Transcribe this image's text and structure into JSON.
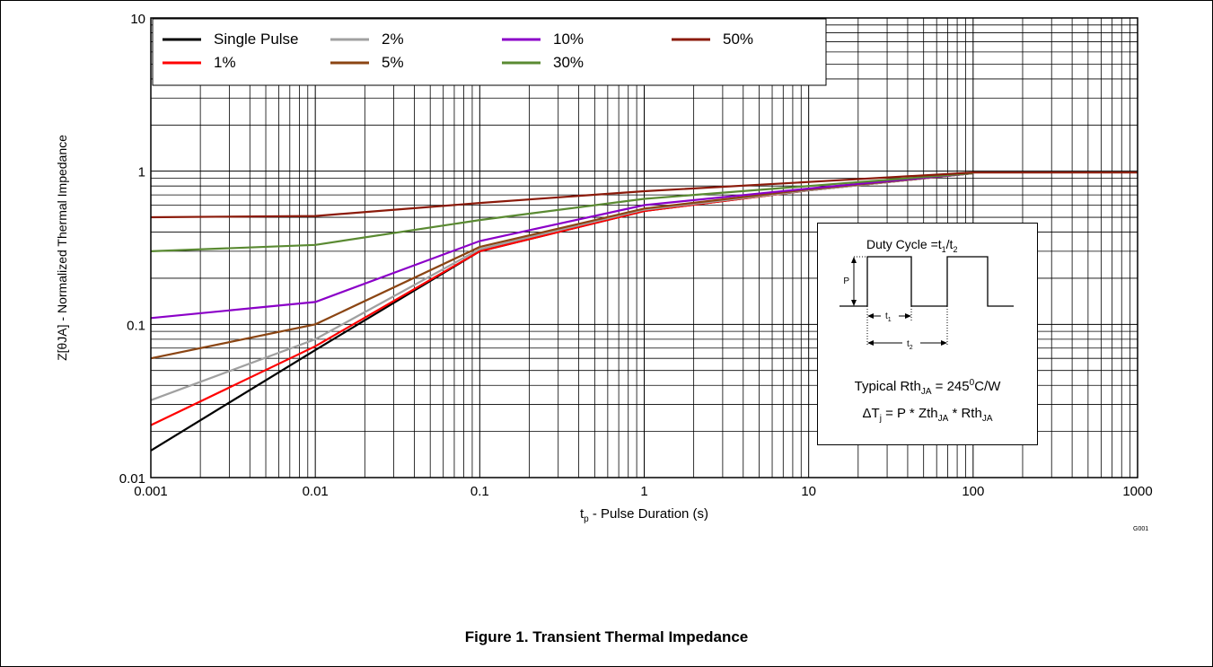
{
  "caption": "Figure 1.  Transient Thermal Impedance",
  "figure_code": "G001",
  "inset": {
    "duty_cycle_prefix": "Duty Cycle =t",
    "duty_cycle_sub1": "1",
    "duty_cycle_slash": "/t",
    "duty_cycle_sub2": "2",
    "p_label": "P",
    "t1_label": "t",
    "t1_sub": "1",
    "t2_label": "t",
    "t2_sub": "2",
    "rth_prefix": "Typical Rth",
    "rth_sub": "JA",
    "rth_value": " = 245",
    "rth_sup": "0",
    "rth_unit": "C/W",
    "dt_prefix": "ΔT",
    "dt_sub": "j",
    "dt_mid1": " = P * Zth",
    "dt_sub2": "JA",
    "dt_mid2": " * Rth",
    "dt_sub3": "JA"
  },
  "chart_data": {
    "type": "line",
    "title": "",
    "xlabel_main": "t",
    "xlabel_sub": "p",
    "xlabel_rest": " - Pulse Duration (s)",
    "ylabel": "Z[θJA] - Normalized Thermal Impedance",
    "x_scale": "log",
    "y_scale": "log",
    "xlim": [
      0.001,
      1000
    ],
    "ylim": [
      0.01,
      10
    ],
    "x_ticks": [
      "0.001",
      "0.01",
      "0.1",
      "1",
      "10",
      "100",
      "1000"
    ],
    "y_ticks": [
      "0.01",
      "0.1",
      "1",
      "10"
    ],
    "grid": true,
    "legend_position": "top-left",
    "series": [
      {
        "name": "Single Pulse",
        "color": "#000000",
        "x": [
          0.001,
          0.01,
          0.1,
          1,
          10,
          100
        ],
        "y": [
          0.015,
          0.068,
          0.3,
          0.55,
          0.75,
          0.97
        ]
      },
      {
        "name": "1%",
        "color": "#ff0000",
        "x": [
          0.001,
          0.01,
          0.1,
          1,
          10,
          100
        ],
        "y": [
          0.022,
          0.072,
          0.3,
          0.55,
          0.75,
          0.97
        ]
      },
      {
        "name": "2%",
        "color": "#a0a0a0",
        "x": [
          0.001,
          0.01,
          0.1,
          1,
          10,
          100
        ],
        "y": [
          0.032,
          0.08,
          0.31,
          0.56,
          0.75,
          0.97
        ]
      },
      {
        "name": "5%",
        "color": "#8b4513",
        "x": [
          0.001,
          0.01,
          0.1,
          1,
          10,
          100
        ],
        "y": [
          0.06,
          0.1,
          0.32,
          0.57,
          0.76,
          0.97
        ]
      },
      {
        "name": "10%",
        "color": "#8b00c8",
        "x": [
          0.001,
          0.01,
          0.1,
          1,
          10,
          100
        ],
        "y": [
          0.11,
          0.14,
          0.35,
          0.6,
          0.77,
          0.97
        ]
      },
      {
        "name": "30%",
        "color": "#5a8a32",
        "x": [
          0.001,
          0.01,
          0.1,
          1,
          10,
          100
        ],
        "y": [
          0.3,
          0.33,
          0.48,
          0.66,
          0.8,
          0.97
        ]
      },
      {
        "name": "50%",
        "color": "#8b1a0a",
        "x": [
          0.001,
          0.01,
          0.1,
          1,
          10,
          100,
          1000
        ],
        "y": [
          0.5,
          0.51,
          0.62,
          0.74,
          0.85,
          0.98,
          0.98
        ]
      }
    ]
  }
}
